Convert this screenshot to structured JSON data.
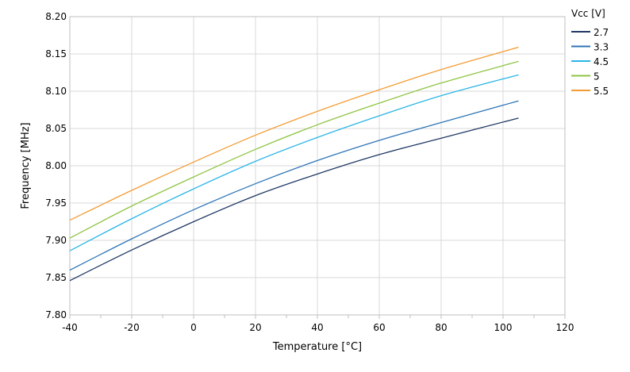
{
  "chart_data": {
    "type": "line",
    "title": "",
    "xlabel": "Temperature [°C]",
    "ylabel": "Frequency [MHz]",
    "xlim": [
      -40,
      120
    ],
    "ylim": [
      7.8,
      8.2
    ],
    "x_ticks": [
      "-40",
      "-20",
      "0",
      "20",
      "40",
      "60",
      "80",
      "100",
      "120"
    ],
    "y_ticks": [
      "7.80",
      "7.85",
      "7.90",
      "7.95",
      "8.00",
      "8.05",
      "8.10",
      "8.15",
      "8.20"
    ],
    "grid": true,
    "legend": {
      "title": "Vcc [V]",
      "placement": "top-right"
    },
    "x": [
      -40,
      -20,
      0,
      20,
      40,
      60,
      80,
      105
    ],
    "series": [
      {
        "name": "2.7",
        "color": "#1f3864",
        "values": [
          7.846,
          7.887,
          7.925,
          7.96,
          7.989,
          8.015,
          8.037,
          8.064
        ]
      },
      {
        "name": "3.3",
        "color": "#2e75b6",
        "values": [
          7.86,
          7.902,
          7.941,
          7.976,
          8.007,
          8.034,
          8.058,
          8.087
        ]
      },
      {
        "name": "4.5",
        "color": "#2bb5e6",
        "values": [
          7.886,
          7.929,
          7.969,
          8.006,
          8.038,
          8.067,
          8.094,
          8.122
        ]
      },
      {
        "name": "5",
        "color": "#8fc443",
        "values": [
          7.903,
          7.946,
          7.985,
          8.022,
          8.055,
          8.084,
          8.111,
          8.14
        ]
      },
      {
        "name": "5.5",
        "color": "#f39c34",
        "values": [
          7.927,
          7.967,
          8.005,
          8.041,
          8.073,
          8.102,
          8.129,
          8.159
        ]
      }
    ]
  }
}
